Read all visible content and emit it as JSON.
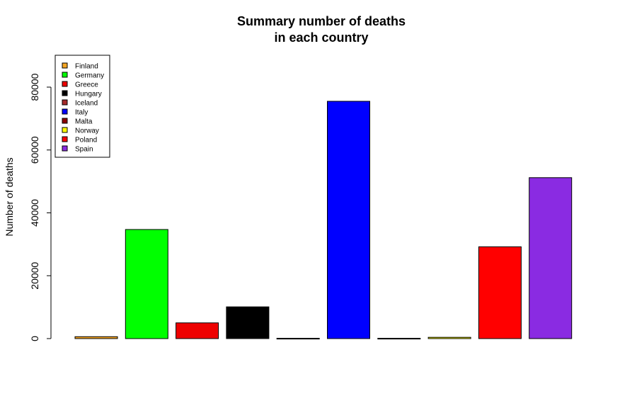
{
  "chart_data": {
    "type": "bar",
    "title": [
      "Summary number of deaths",
      "in each country"
    ],
    "ylabel": "Number of deaths",
    "xlabel": "",
    "ylim": [
      0,
      90000
    ],
    "yticks": [
      0,
      20000,
      40000,
      60000,
      80000
    ],
    "ytick_labels": [
      "0",
      "20000",
      "40000",
      "60000",
      "80000"
    ],
    "legend_position": "top-left",
    "categories": [
      "Finland",
      "Germany",
      "Greece",
      "Hungary",
      "Iceland",
      "Italy",
      "Malta",
      "Norway",
      "Poland",
      "Spain"
    ],
    "values": [
      600,
      34700,
      5000,
      10100,
      100,
      75500,
      100,
      400,
      29200,
      51200
    ],
    "colors": [
      "#f5a623",
      "#00ff00",
      "#ee0000",
      "#000000",
      "#a52a2a",
      "#0000ff",
      "#8b0000",
      "#ffff00",
      "#ff0000",
      "#8a2be2"
    ]
  }
}
